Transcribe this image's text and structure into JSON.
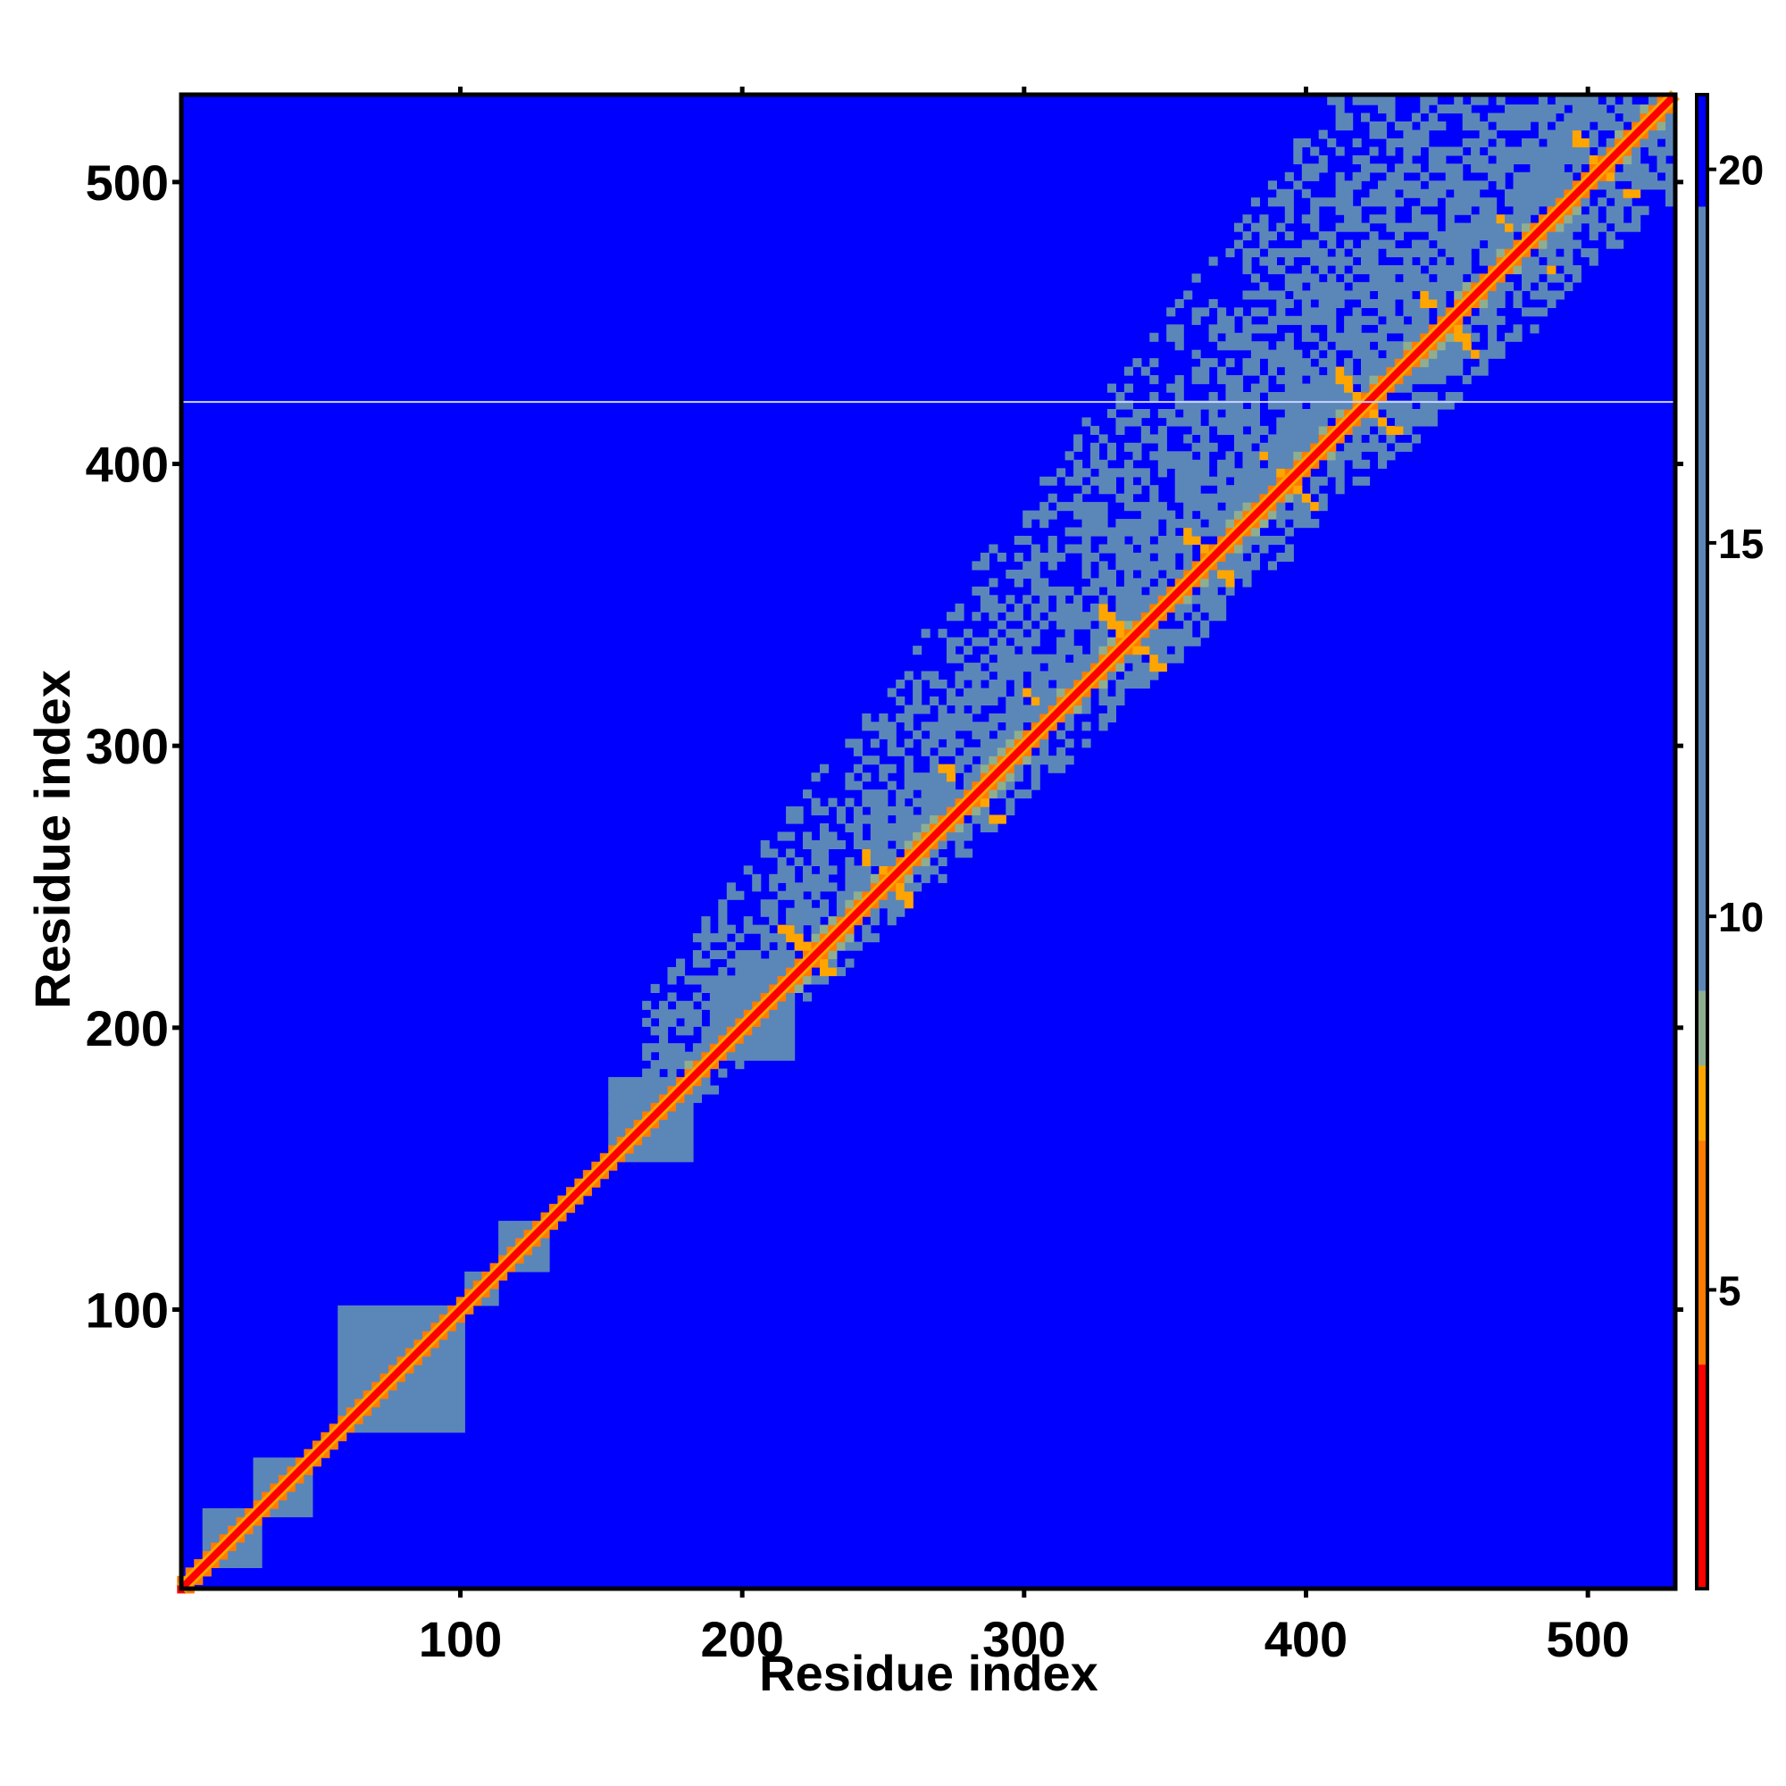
{
  "chart_data": {
    "type": "heatmap",
    "title": "",
    "xlabel": "Residue index",
    "ylabel": "Residue index",
    "xlim": [
      1,
      531
    ],
    "ylim": [
      1,
      531
    ],
    "x_ticks": [
      100,
      200,
      300,
      400,
      500
    ],
    "y_ticks": [
      100,
      200,
      300,
      400,
      500
    ],
    "x_tick_labels": [
      "100",
      "200",
      "300",
      "400",
      "500"
    ],
    "y_tick_labels": [
      "100",
      "200",
      "300",
      "400",
      "500"
    ],
    "grid": false,
    "legend": "none",
    "colorbar": {
      "position": "right",
      "range": [
        1,
        21
      ],
      "ticks": [
        5,
        10,
        15,
        20
      ],
      "tick_labels": [
        "5",
        "10",
        "15",
        "20"
      ],
      "colors": [
        "#ff0000",
        "#ff7a00",
        "#ffa500",
        "#8fae8f",
        "#5b87b8",
        "#0000ff"
      ],
      "thresholds": [
        1,
        4,
        7,
        8,
        9,
        19.5,
        21
      ]
    },
    "diagonal_color": "#ff0000",
    "background_color": "#0000ff",
    "contact_color": "#5b87b8",
    "domains": [
      {
        "start": 10,
        "end": 28,
        "spread": 8
      },
      {
        "start": 30,
        "end": 45,
        "spread": 4
      },
      {
        "start": 60,
        "end": 98,
        "spread": 14
      },
      {
        "start": 105,
        "end": 112,
        "spread": 4
      },
      {
        "start": 115,
        "end": 130,
        "spread": 8
      },
      {
        "start": 155,
        "end": 180,
        "spread": 13
      },
      {
        "start": 190,
        "end": 215,
        "spread": 10
      }
    ],
    "contact_region": {
      "start": 185,
      "end": 531,
      "band_halfwidth_start": 35,
      "band_halfwidth_end": 110
    },
    "helix_repeats": [
      200,
      225,
      252,
      282,
      310,
      338,
      366,
      394,
      422,
      450,
      478,
      506
    ],
    "gap_row": 422
  }
}
